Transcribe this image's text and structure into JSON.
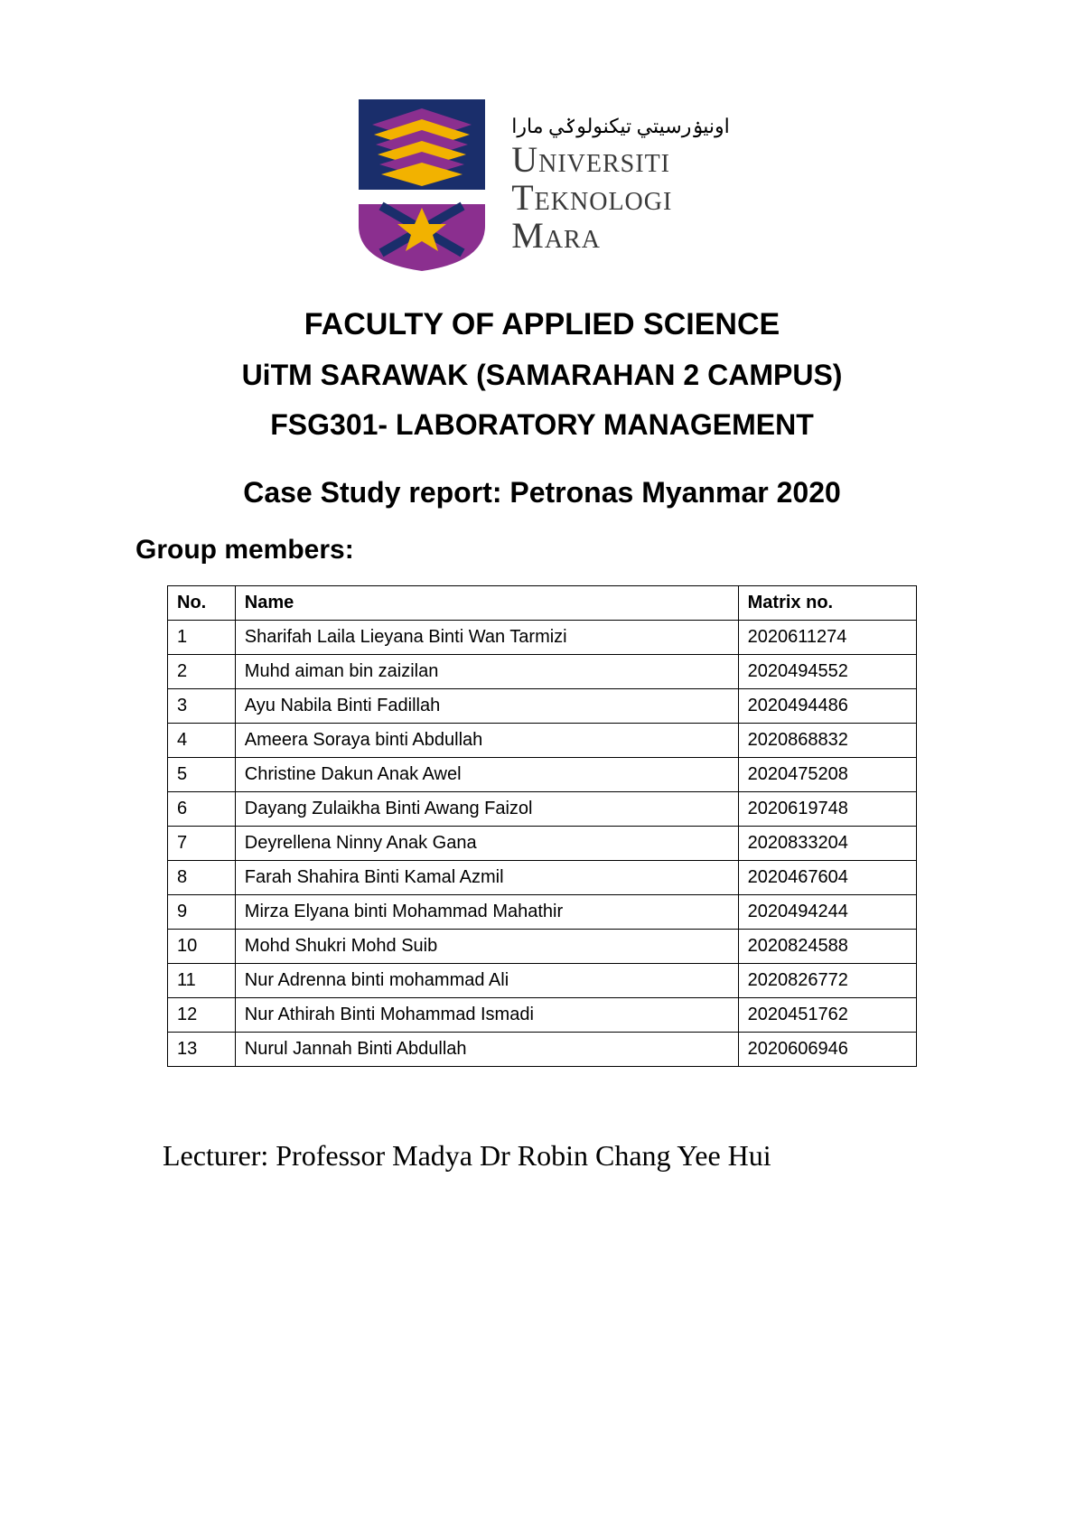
{
  "logo": {
    "crest": {
      "top_bg": "#1a2e6b",
      "book_colors": [
        "#8b2f8f",
        "#f2b200"
      ],
      "shield_band": "#ffffff",
      "shield_lower": "#8b2f8f",
      "cross": "#1a2e6b",
      "star": "#f2b200"
    },
    "jawi": "اونيۏرسيتي تيكنولوݢي مارا",
    "line1": "Universiti",
    "line2": "Teknologi",
    "line3": "Mara"
  },
  "titles": {
    "faculty": "FACULTY OF APPLIED SCIENCE",
    "campus": "UiTM SARAWAK (SAMARAHAN 2 CAMPUS)",
    "course": "FSG301- LABORATORY MANAGEMENT",
    "case_study": "Case Study report: Petronas Myanmar 2020"
  },
  "group_label": "Group members:",
  "table": {
    "columns": {
      "no": "No.",
      "name": "Name",
      "matrix": "Matrix no."
    },
    "rows": [
      {
        "no": "1",
        "name": "Sharifah Laila Lieyana Binti Wan Tarmizi",
        "matrix": "2020611274"
      },
      {
        "no": "2",
        "name": "Muhd aiman bin zaizilan",
        "matrix": "2020494552"
      },
      {
        "no": "3",
        "name": "Ayu Nabila Binti Fadillah",
        "matrix": "2020494486"
      },
      {
        "no": "4",
        "name": "Ameera Soraya binti Abdullah",
        "matrix": "2020868832"
      },
      {
        "no": "5",
        "name": "Christine Dakun Anak Awel",
        "matrix": "2020475208"
      },
      {
        "no": "6",
        "name": "Dayang Zulaikha Binti Awang Faizol",
        "matrix": "2020619748"
      },
      {
        "no": "7",
        "name": "Deyrellena Ninny Anak Gana",
        "matrix": "2020833204"
      },
      {
        "no": "8",
        "name": "Farah Shahira Binti Kamal Azmil",
        "matrix": "2020467604"
      },
      {
        "no": "9",
        "name": "Mirza Elyana binti Mohammad Mahathir",
        "matrix": "2020494244"
      },
      {
        "no": "10",
        "name": "Mohd Shukri Mohd Suib",
        "matrix": "2020824588"
      },
      {
        "no": "11",
        "name": "Nur Adrenna binti mohammad Ali",
        "matrix": "2020826772"
      },
      {
        "no": "12",
        "name": "Nur Athirah Binti Mohammad Ismadi",
        "matrix": "2020451762"
      },
      {
        "no": "13",
        "name": "Nurul Jannah Binti Abdullah",
        "matrix": "2020606946"
      }
    ]
  },
  "lecturer": "Lecturer: Professor Madya Dr Robin Chang Yee Hui"
}
